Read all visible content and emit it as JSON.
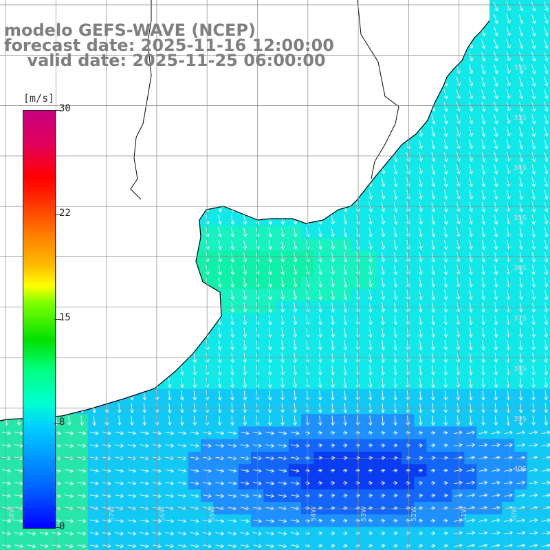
{
  "title": {
    "line1": "modelo GEFS-WAVE (NCEP)",
    "line2": "forecast date: 2025-11-16 12:00:00",
    "line3": "    valid date: 2025-11-25 06:00:00"
  },
  "colorbar": {
    "unit": "[m/s]",
    "ticks": [
      "30",
      "22",
      "15",
      "8",
      "0"
    ]
  },
  "lat_labels": [
    "33S",
    "33S",
    "34S",
    "35S",
    "36S",
    "37S",
    "38S",
    "39S",
    "40S"
  ],
  "lon_labels": [
    "58W",
    "57W",
    "56W",
    "55W",
    "54W",
    "53W",
    "52W",
    "51W",
    "50W"
  ],
  "colors": {
    "land": "#ffffff",
    "coast": "#000000",
    "grid": "#8a8a8a",
    "arrows": "#ffffff"
  }
}
